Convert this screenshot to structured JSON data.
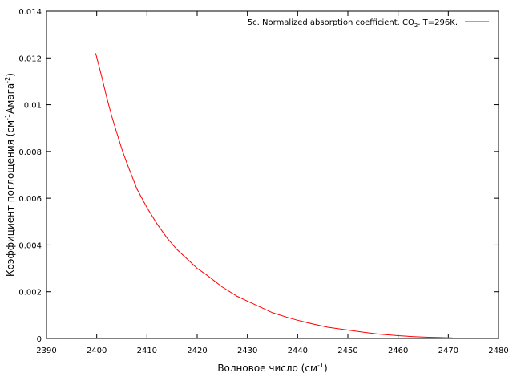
{
  "chart_data": {
    "type": "line",
    "xlabel": "Волновое число (см",
    "xlabel_sup": "-1",
    "xlabel_tail": ")",
    "ylabel": "Коэффициент поглощения (см",
    "ylabel_sup1": "-1",
    "ylabel_mid": "Амага",
    "ylabel_sup2": "-2",
    "ylabel_tail": ")",
    "xlim": [
      2390,
      2480
    ],
    "ylim": [
      0,
      0.014
    ],
    "xticks": [
      "2390",
      "2400",
      "2410",
      "2420",
      "2430",
      "2440",
      "2450",
      "2460",
      "2470",
      "2480"
    ],
    "yticks": [
      "0",
      "0.002",
      "0.004",
      "0.006",
      "0.008",
      "0.01",
      "0.012",
      "0.014"
    ],
    "grid": false,
    "legend_position": "top-right",
    "series": [
      {
        "name": "5c. Normalized absorption coefficient. CO",
        "name_sub": "2",
        "name_tail": ". T=296K.",
        "color": "#ff0000",
        "x": [
          2399.8,
          2401,
          2402,
          2403,
          2404,
          2405,
          2406,
          2408,
          2410,
          2412,
          2414,
          2416,
          2418,
          2420,
          2422,
          2425,
          2428,
          2430,
          2432,
          2435,
          2438,
          2440,
          2443,
          2446,
          2450,
          2453,
          2456,
          2460,
          2463,
          2466,
          2468,
          2470.9
        ],
        "y": [
          0.0122,
          0.0112,
          0.0103,
          0.0095,
          0.0088,
          0.0081,
          0.0075,
          0.0064,
          0.0056,
          0.0049,
          0.0043,
          0.0038,
          0.0034,
          0.003,
          0.0027,
          0.0022,
          0.0018,
          0.0016,
          0.0014,
          0.0011,
          0.0009,
          0.00078,
          0.00062,
          0.00048,
          0.00036,
          0.00027,
          0.00019,
          0.00012,
          8e-05,
          5e-05,
          4e-05,
          2e-05
        ]
      }
    ]
  }
}
